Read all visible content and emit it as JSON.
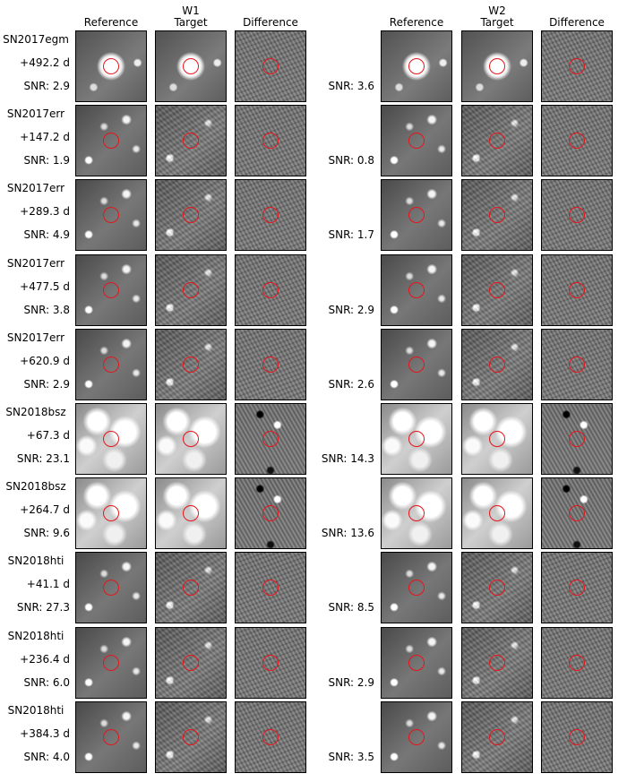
{
  "header": {
    "w1_band": "W1",
    "w2_band": "W2",
    "columns": [
      "Reference",
      "Target",
      "Difference"
    ]
  },
  "rows": [
    {
      "name": "SN2017egm",
      "phase": "+492.2 d",
      "snr_w1": "SNR: 2.9",
      "snr_w2": "SNR: 3.6"
    },
    {
      "name": "SN2017err",
      "phase": "+147.2 d",
      "snr_w1": "SNR: 1.9",
      "snr_w2": "SNR: 0.8"
    },
    {
      "name": "SN2017err",
      "phase": "+289.3 d",
      "snr_w1": "SNR: 4.9",
      "snr_w2": "SNR: 1.7"
    },
    {
      "name": "SN2017err",
      "phase": "+477.5 d",
      "snr_w1": "SNR: 3.8",
      "snr_w2": "SNR: 2.9"
    },
    {
      "name": "SN2017err",
      "phase": "+620.9 d",
      "snr_w1": "SNR: 2.9",
      "snr_w2": "SNR: 2.6"
    },
    {
      "name": "SN2018bsz",
      "phase": "+67.3 d",
      "snr_w1": "SNR: 23.1",
      "snr_w2": "SNR: 14.3"
    },
    {
      "name": "SN2018bsz",
      "phase": "+264.7 d",
      "snr_w1": "SNR: 9.6",
      "snr_w2": "SNR: 13.6"
    },
    {
      "name": "SN2018hti",
      "phase": "+41.1 d",
      "snr_w1": "SNR: 27.3",
      "snr_w2": "SNR: 8.5"
    },
    {
      "name": "SN2018hti",
      "phase": "+236.4 d",
      "snr_w1": "SNR: 6.0",
      "snr_w2": "SNR: 2.9"
    },
    {
      "name": "SN2018hti",
      "phase": "+384.3 d",
      "snr_w1": "SNR: 4.0",
      "snr_w2": "SNR: 3.5"
    }
  ],
  "colors": {
    "aperture_circle": "#e8141b",
    "frame": "#000000"
  },
  "icons": {
    "aperture": "red-circle-aperture"
  }
}
